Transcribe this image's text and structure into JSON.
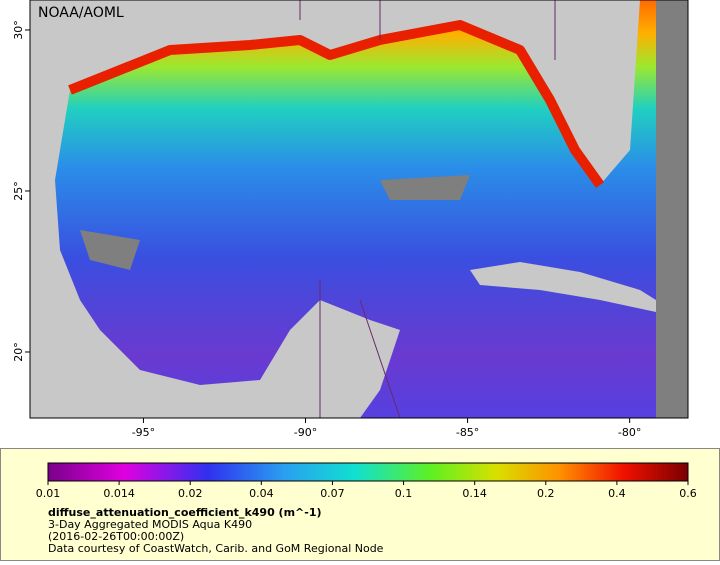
{
  "map": {
    "credit": "NOAA/AOML",
    "lonlim": [
      -98.5,
      -78.2
    ],
    "latlim": [
      17.95,
      30.93
    ],
    "lon_ticks": [
      {
        "value": -95,
        "label": "-95°"
      },
      {
        "value": -90,
        "label": "-90°"
      },
      {
        "value": -85,
        "label": "-85°"
      },
      {
        "value": -80,
        "label": "-80°"
      }
    ],
    "lat_ticks": [
      {
        "value": 20,
        "label": "20°"
      },
      {
        "value": 25,
        "label": "25°"
      },
      {
        "value": 30,
        "label": "30°"
      }
    ]
  },
  "colorbar": {
    "ticks": [
      "0.01",
      "0.014",
      "0.02",
      "0.04",
      "0.07",
      "0.1",
      "0.14",
      "0.2",
      "0.4",
      "0.6"
    ],
    "title": "diffuse_attenuation_coefficient_k490 (m^-1)",
    "lines": [
      "3-Day Aggregated MODIS Aqua K490",
      "(2016-02-26T00:00:00Z)",
      "Data courtesy of CoastWatch, Carib. and GoM Regional Node"
    ]
  }
}
